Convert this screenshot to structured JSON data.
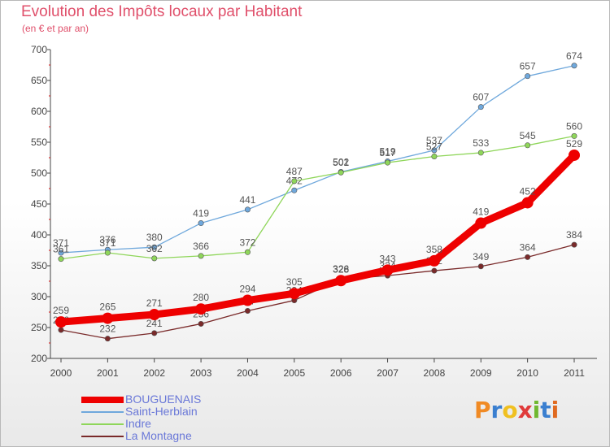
{
  "header": {
    "title": "Evolution des Impôts locaux par Habitant",
    "subtitle": "(en € et par an)"
  },
  "logo": {
    "text": "Proxiti",
    "letters": [
      "P",
      "r",
      "o",
      "x",
      "i",
      "t",
      "i"
    ],
    "letter_colors": [
      "#f08a24",
      "#3a7fd0",
      "#f0c020",
      "#e03a3a",
      "#70b830",
      "#3a7fd0",
      "#e06a20"
    ]
  },
  "chart_data": {
    "type": "line",
    "title": "Evolution des Impôts locaux par Habitant",
    "subtitle": "(en € et par an)",
    "xlabel": "",
    "ylabel": "",
    "x": [
      "2000",
      "2001",
      "2002",
      "2003",
      "2004",
      "2005",
      "2006",
      "2007",
      "2008",
      "2009",
      "2010",
      "2011"
    ],
    "ylim": [
      200,
      700
    ],
    "yticks": [
      200,
      250,
      300,
      350,
      400,
      450,
      500,
      550,
      600,
      650,
      700
    ],
    "grid": false,
    "legend_position": "bottom-left",
    "series": [
      {
        "name": "BOUGUENAIS",
        "color": "#ee0000",
        "values": [
          259,
          265,
          271,
          280,
          294,
          305,
          326,
          343,
          358,
          419,
          452,
          529
        ]
      },
      {
        "name": "Saint-Herblain",
        "color": "#6fa8dc",
        "values": [
          371,
          376,
          380,
          419,
          441,
          472,
          502,
          519,
          537,
          607,
          657,
          674
        ]
      },
      {
        "name": "Indre",
        "color": "#8fd65a",
        "values": [
          361,
          371,
          362,
          366,
          372,
          487,
          501,
          517,
          527,
          533,
          545,
          560
        ]
      },
      {
        "name": "La Montagne",
        "color": "#7a2a2a",
        "values": [
          246,
          232,
          241,
          256,
          277,
          294,
          328,
          334,
          342,
          349,
          364,
          384
        ]
      }
    ]
  }
}
